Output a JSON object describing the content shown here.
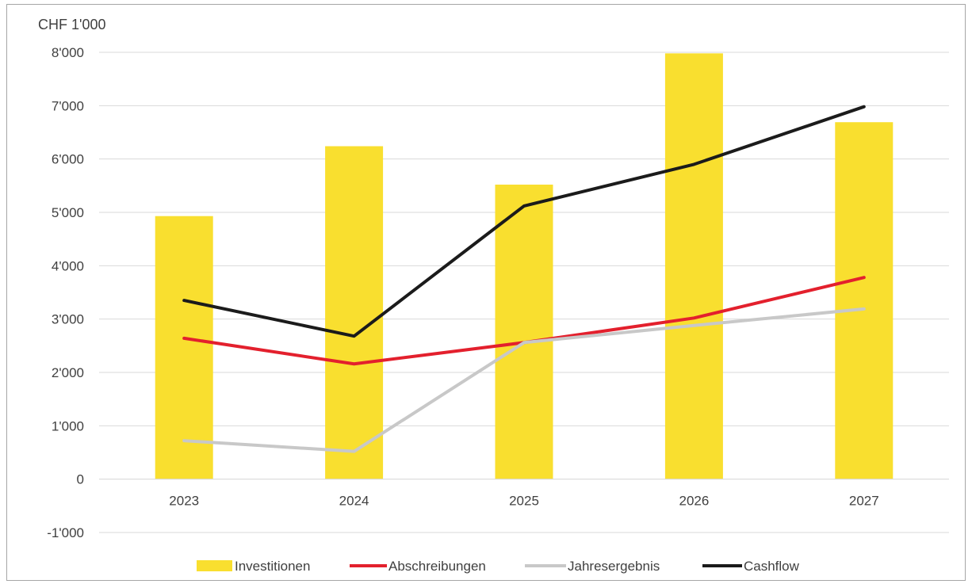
{
  "chart_data": {
    "type": "bar",
    "unit_label": "CHF 1'000",
    "categories": [
      "2023",
      "2024",
      "2025",
      "2026",
      "2027"
    ],
    "ylim": [
      -1000,
      8000
    ],
    "yticks": [
      {
        "value": 8000,
        "label": "8'000"
      },
      {
        "value": 7000,
        "label": "7'000"
      },
      {
        "value": 6000,
        "label": "6'000"
      },
      {
        "value": 5000,
        "label": "5'000"
      },
      {
        "value": 4000,
        "label": "4'000"
      },
      {
        "value": 3000,
        "label": "3'000"
      },
      {
        "value": 2000,
        "label": "2'000"
      },
      {
        "value": 1000,
        "label": "1'000"
      },
      {
        "value": 0,
        "label": "0"
      },
      {
        "value": -1000,
        "label": "-1'000"
      }
    ],
    "grid": true,
    "legend_position": "bottom",
    "series": [
      {
        "name": "Investitionen",
        "kind": "bar",
        "color": "#f9df2f",
        "values": [
          4930,
          6240,
          5520,
          7980,
          6690
        ]
      },
      {
        "name": "Abschreibungen",
        "kind": "line",
        "color": "#e3202d",
        "values": [
          2640,
          2160,
          2560,
          3020,
          3780
        ]
      },
      {
        "name": "Jahresergebnis",
        "kind": "line",
        "color": "#c8c8c8",
        "values": [
          720,
          520,
          2560,
          2880,
          3190
        ]
      },
      {
        "name": "Cashflow",
        "kind": "line",
        "color": "#1b1b1b",
        "values": [
          3350,
          2680,
          5120,
          5900,
          6980
        ]
      }
    ]
  }
}
